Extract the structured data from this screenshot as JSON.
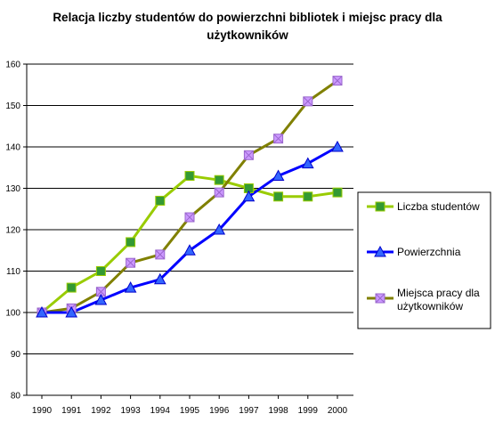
{
  "chart_data": {
    "type": "line",
    "title_lines": [
      "Relacja liczby studentów do powierzchni bibliotek i miejsc pracy dla",
      "użytkowników"
    ],
    "xlabel": "",
    "ylabel": "",
    "categories": [
      "1990",
      "1991",
      "1992",
      "1993",
      "1994",
      "1995",
      "1996",
      "1997",
      "1998",
      "1999",
      "2000"
    ],
    "ylim": [
      80,
      160
    ],
    "yticks": [
      80,
      90,
      100,
      110,
      120,
      130,
      140,
      150,
      160
    ],
    "grid": "horizontal",
    "legend_position": "right",
    "series": [
      {
        "name": "Liczba studentów",
        "color": "#99cc00",
        "marker": "square",
        "marker_color": "#339933",
        "values": [
          100,
          106,
          110,
          117,
          127,
          133,
          132,
          130,
          128,
          128,
          129
        ]
      },
      {
        "name": "Powierzchnia",
        "color": "#0000ff",
        "marker": "triangle",
        "marker_color": "#3366ff",
        "values": [
          100,
          100,
          103,
          106,
          108,
          115,
          120,
          128,
          133,
          136,
          140
        ]
      },
      {
        "name_lines": [
          "Miejsca pracy dla",
          "użytkowników"
        ],
        "color": "#808000",
        "marker": "x-square",
        "marker_color": "#cc99ff",
        "values": [
          100,
          101,
          105,
          112,
          114,
          123,
          129,
          138,
          142,
          151,
          156
        ]
      }
    ]
  }
}
